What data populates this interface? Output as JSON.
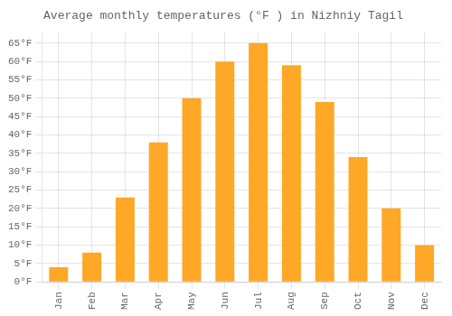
{
  "chart_data": {
    "type": "bar",
    "title": "Average monthly temperatures (°F ) in Nizhniy Tagil",
    "categories": [
      "Jan",
      "Feb",
      "Mar",
      "Apr",
      "May",
      "Jun",
      "Jul",
      "Aug",
      "Sep",
      "Oct",
      "Nov",
      "Dec"
    ],
    "values": [
      4,
      8,
      23,
      38,
      50,
      60,
      65,
      59,
      49,
      34,
      20,
      10
    ],
    "color": "#FFA726",
    "ylim": [
      0,
      68
    ],
    "yticks": [
      {
        "value": 0,
        "label": "0°F"
      },
      {
        "value": 5,
        "label": "5°F"
      },
      {
        "value": 10,
        "label": "10°F"
      },
      {
        "value": 15,
        "label": "15°F"
      },
      {
        "value": 20,
        "label": "20°F"
      },
      {
        "value": 25,
        "label": "25°F"
      },
      {
        "value": 30,
        "label": "30°F"
      },
      {
        "value": 35,
        "label": "35°F"
      },
      {
        "value": 40,
        "label": "40°F"
      },
      {
        "value": 45,
        "label": "45°F"
      },
      {
        "value": 50,
        "label": "50°F"
      },
      {
        "value": 55,
        "label": "55°F"
      },
      {
        "value": 60,
        "label": "60°F"
      },
      {
        "value": 65,
        "label": "65°F"
      }
    ],
    "grid": true
  }
}
